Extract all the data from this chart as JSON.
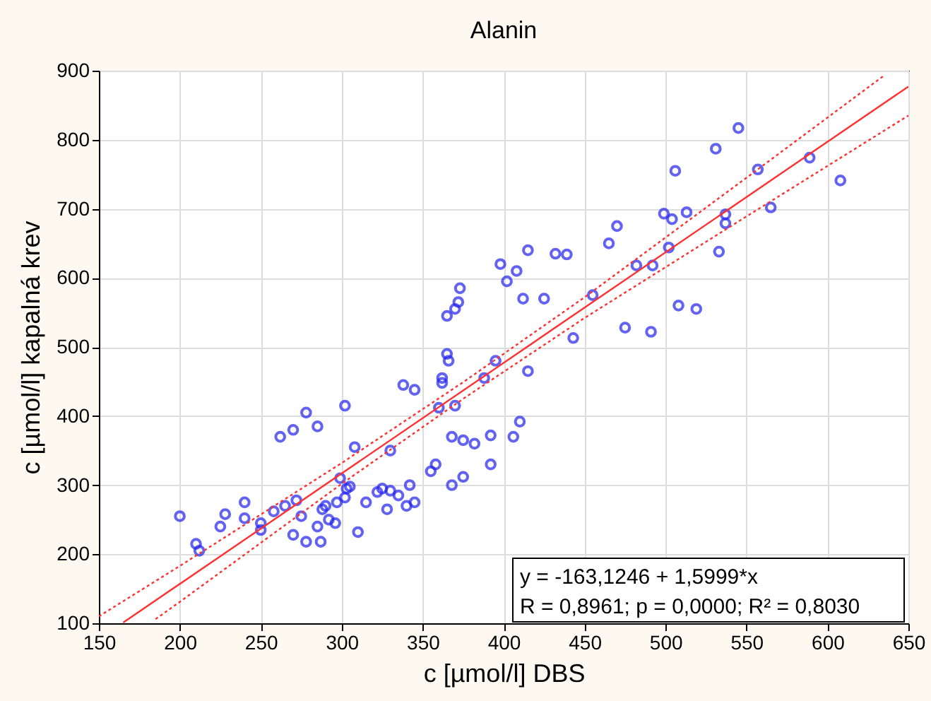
{
  "chart_data": {
    "type": "scatter",
    "title": "Alanin",
    "xlabel": "c [µmol/l] DBS",
    "ylabel": "c [µmol/l] kapalná krev",
    "xlim": [
      150,
      650
    ],
    "xticks": [
      150,
      200,
      250,
      300,
      350,
      400,
      450,
      500,
      550,
      600,
      650
    ],
    "ylim": [
      100,
      900
    ],
    "yticks": [
      100,
      200,
      300,
      400,
      500,
      600,
      700,
      800,
      900
    ],
    "grid": true,
    "marker": "circle",
    "annotations": [
      "y = -163,1246 + 1,5999*x",
      "R = 0,8961; p = 0,0000; R² = 0,8030"
    ],
    "series": [
      {
        "color": "#2222ee",
        "x": [
          200,
          210,
          212,
          225,
          228,
          240,
          240,
          250,
          250,
          258,
          262,
          265,
          270,
          272,
          270,
          275,
          278,
          278,
          285,
          285,
          287,
          288,
          290,
          292,
          296,
          297,
          299,
          302,
          302,
          303,
          305,
          308,
          310,
          315,
          322,
          325,
          328,
          330,
          330,
          335,
          338,
          340,
          342,
          345,
          345,
          355,
          358,
          360,
          362,
          362,
          365,
          365,
          366,
          368,
          370,
          368,
          370,
          372,
          373,
          375,
          375,
          382,
          388,
          392,
          392,
          395,
          398,
          402,
          406,
          408,
          410,
          412,
          415,
          415,
          425,
          432,
          439,
          443,
          455,
          465,
          470,
          475,
          482,
          491,
          492,
          499,
          502,
          504,
          508,
          506,
          513,
          519,
          531,
          533,
          537,
          537,
          545,
          565,
          557,
          589,
          608
        ],
        "values": [
          255,
          215,
          205,
          240,
          258,
          275,
          252,
          245,
          235,
          262,
          370,
          270,
          380,
          278,
          228,
          255,
          218,
          405,
          385,
          240,
          218,
          265,
          270,
          250,
          245,
          275,
          310,
          282,
          415,
          295,
          298,
          355,
          232,
          275,
          290,
          295,
          265,
          350,
          292,
          285,
          445,
          270,
          300,
          275,
          438,
          320,
          330,
          412,
          448,
          455,
          490,
          545,
          480,
          370,
          415,
          300,
          555,
          565,
          585,
          312,
          365,
          360,
          455,
          372,
          330,
          480,
          620,
          595,
          370,
          610,
          392,
          570,
          465,
          640,
          570,
          635,
          634,
          513,
          575,
          650,
          675,
          528,
          618,
          522,
          618,
          693,
          644,
          685,
          560,
          755,
          695,
          555,
          787,
          638,
          679,
          692,
          817,
          702,
          757,
          774,
          741
        ]
      },
      {
        "type": "line",
        "color": "#ff3030",
        "line_style": "solid",
        "marker": "none",
        "x": [
          165,
          650
        ],
        "values": [
          101,
          877
        ]
      },
      {
        "type": "line",
        "color": "#ff3030",
        "line_style": "dotted",
        "marker": "none",
        "x": [
          150,
          200,
          300,
          375,
          450,
          550,
          635
        ],
        "values": [
          110,
          183,
          332,
          449,
          572,
          745,
          893
        ]
      },
      {
        "type": "line",
        "color": "#ff3030",
        "line_style": "dotted",
        "marker": "none",
        "x": [
          185,
          200,
          300,
          375,
          450,
          550,
          650
        ],
        "values": [
          106,
          131,
          302,
          425,
          542,
          689,
          835
        ]
      }
    ]
  }
}
